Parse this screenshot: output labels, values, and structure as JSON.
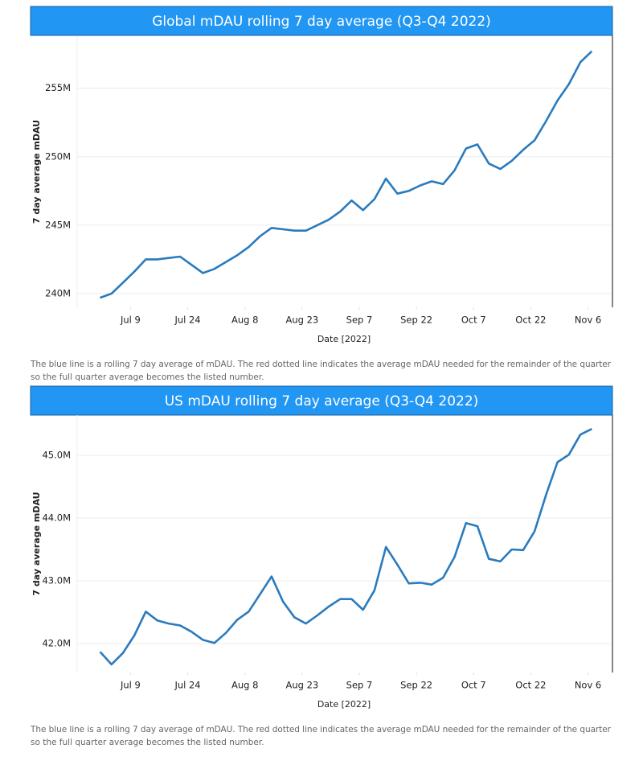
{
  "chart_data": [
    {
      "type": "line",
      "title": "Global mDAU rolling 7 day average (Q3-Q4 2022)",
      "x_label": "Date [2022]",
      "y_label": "7 day average mDAU",
      "annotations": [
        "The blue line is a rolling 7 day average of mDAU. The red dotted line indicates the average mDAU needed for the remainder of the quarter",
        "so the full quarter average becomes the listed number."
      ],
      "color": "#2a7bbd",
      "grid": true,
      "x": [
        "2022-07-01",
        "2022-07-04",
        "2022-07-07",
        "2022-07-10",
        "2022-07-13",
        "2022-07-16",
        "2022-07-19",
        "2022-07-22",
        "2022-07-25",
        "2022-07-28",
        "2022-07-31",
        "2022-08-03",
        "2022-08-06",
        "2022-08-09",
        "2022-08-12",
        "2022-08-15",
        "2022-08-18",
        "2022-08-21",
        "2022-08-24",
        "2022-08-27",
        "2022-08-30",
        "2022-09-02",
        "2022-09-05",
        "2022-09-08",
        "2022-09-11",
        "2022-09-14",
        "2022-09-17",
        "2022-09-20",
        "2022-09-23",
        "2022-09-26",
        "2022-09-29",
        "2022-10-02",
        "2022-10-05",
        "2022-10-08",
        "2022-10-11",
        "2022-10-14",
        "2022-10-17",
        "2022-10-20",
        "2022-10-23",
        "2022-10-26",
        "2022-10-29",
        "2022-11-01",
        "2022-11-04",
        "2022-11-07"
      ],
      "values": [
        239700000,
        240000000,
        240800000,
        241600000,
        242500000,
        242500000,
        242600000,
        242700000,
        242100000,
        241500000,
        241800000,
        242300000,
        242800000,
        243400000,
        244200000,
        244800000,
        244700000,
        244600000,
        244600000,
        245000000,
        245400000,
        246000000,
        246800000,
        246100000,
        246900000,
        248400000,
        247300000,
        247500000,
        247900000,
        248200000,
        248000000,
        249000000,
        250600000,
        250900000,
        249500000,
        249100000,
        249700000,
        250500000,
        251200000,
        252600000,
        254100000,
        255300000,
        256900000,
        257700000
      ],
      "xlim": [
        "2022-06-25",
        "2022-11-12"
      ],
      "xticks": [
        {
          "value": "2022-07-09",
          "label": "Jul 9"
        },
        {
          "value": "2022-07-24",
          "label": "Jul 24"
        },
        {
          "value": "2022-08-08",
          "label": "Aug 8"
        },
        {
          "value": "2022-08-23",
          "label": "Aug 23"
        },
        {
          "value": "2022-09-07",
          "label": "Sep 7"
        },
        {
          "value": "2022-09-22",
          "label": "Sep 22"
        },
        {
          "value": "2022-10-07",
          "label": "Oct 7"
        },
        {
          "value": "2022-10-22",
          "label": "Oct 22"
        },
        {
          "value": "2022-11-06",
          "label": "Nov 6"
        }
      ],
      "ylim": [
        239000000,
        258800000
      ],
      "yticks": [
        {
          "value": 240000000,
          "label": "240M"
        },
        {
          "value": 245000000,
          "label": "245M"
        },
        {
          "value": 250000000,
          "label": "250M"
        },
        {
          "value": 255000000,
          "label": "255M"
        }
      ]
    },
    {
      "type": "line",
      "title": "US mDAU rolling 7 day average (Q3-Q4 2022)",
      "x_label": "Date [2022]",
      "y_label": "7 day average mDAU",
      "annotations": [
        "The blue line is a rolling 7 day average of mDAU. The red dotted line indicates the average mDAU needed for the remainder of the quarter",
        "so the full quarter average becomes the listed number."
      ],
      "color": "#2a7bbd",
      "grid": true,
      "x": [
        "2022-07-01",
        "2022-07-04",
        "2022-07-07",
        "2022-07-10",
        "2022-07-13",
        "2022-07-16",
        "2022-07-19",
        "2022-07-22",
        "2022-07-25",
        "2022-07-28",
        "2022-07-31",
        "2022-08-03",
        "2022-08-06",
        "2022-08-09",
        "2022-08-12",
        "2022-08-15",
        "2022-08-18",
        "2022-08-21",
        "2022-08-24",
        "2022-08-27",
        "2022-08-30",
        "2022-09-02",
        "2022-09-05",
        "2022-09-08",
        "2022-09-11",
        "2022-09-14",
        "2022-09-17",
        "2022-09-20",
        "2022-09-23",
        "2022-09-26",
        "2022-09-29",
        "2022-10-02",
        "2022-10-05",
        "2022-10-08",
        "2022-10-11",
        "2022-10-14",
        "2022-10-17",
        "2022-10-20",
        "2022-10-23",
        "2022-10-26",
        "2022-10-29",
        "2022-11-01",
        "2022-11-04",
        "2022-11-07"
      ],
      "values": [
        41870000,
        41670000,
        41850000,
        42130000,
        42510000,
        42370000,
        42320000,
        42290000,
        42190000,
        42060000,
        42010000,
        42170000,
        42380000,
        42510000,
        42790000,
        43070000,
        42670000,
        42420000,
        42320000,
        42450000,
        42590000,
        42710000,
        42710000,
        42540000,
        42850000,
        43540000,
        43260000,
        42960000,
        42970000,
        42940000,
        43050000,
        43380000,
        43920000,
        43870000,
        43350000,
        43310000,
        43500000,
        43490000,
        43790000,
        44370000,
        44890000,
        45010000,
        45330000,
        45420000
      ],
      "xlim": [
        "2022-06-25",
        "2022-11-12"
      ],
      "xticks": [
        {
          "value": "2022-07-09",
          "label": "Jul 9"
        },
        {
          "value": "2022-07-24",
          "label": "Jul 24"
        },
        {
          "value": "2022-08-08",
          "label": "Aug 8"
        },
        {
          "value": "2022-08-23",
          "label": "Aug 23"
        },
        {
          "value": "2022-09-07",
          "label": "Sep 7"
        },
        {
          "value": "2022-09-22",
          "label": "Sep 22"
        },
        {
          "value": "2022-10-07",
          "label": "Oct 7"
        },
        {
          "value": "2022-10-22",
          "label": "Oct 22"
        },
        {
          "value": "2022-11-06",
          "label": "Nov 6"
        }
      ],
      "ylim": [
        41540000,
        45640000
      ],
      "yticks": [
        {
          "value": 42000000,
          "label": "42.0M"
        },
        {
          "value": 43000000,
          "label": "43.0M"
        },
        {
          "value": 44000000,
          "label": "44.0M"
        },
        {
          "value": 45000000,
          "label": "45.0M"
        }
      ]
    }
  ]
}
